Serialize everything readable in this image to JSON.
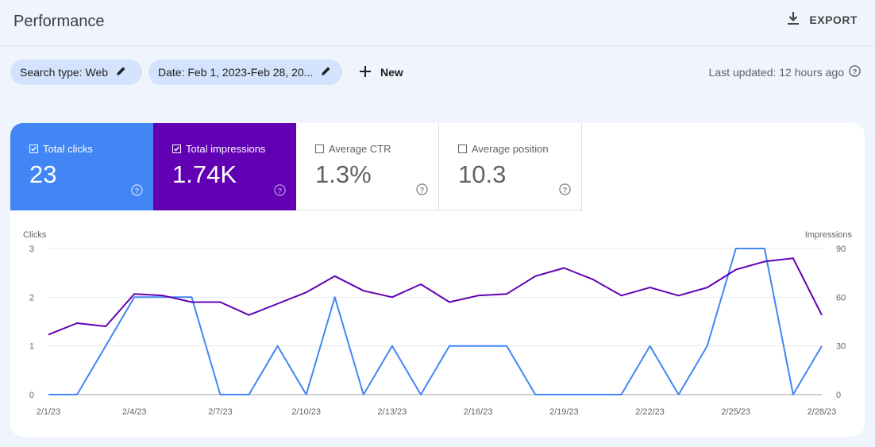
{
  "header": {
    "title": "Performance",
    "export_label": "EXPORT"
  },
  "filters": {
    "search_type": "Search type: Web",
    "date": "Date: Feb 1, 2023-Feb 28, 20...",
    "new_label": "New"
  },
  "last_updated": "Last updated: 12 hours ago",
  "metrics": [
    {
      "label": "Total clicks",
      "value": "23",
      "checked": true,
      "color": "#4285f4"
    },
    {
      "label": "Total impressions",
      "value": "1.74K",
      "checked": true,
      "color": "#6200b3"
    },
    {
      "label": "Average CTR",
      "value": "1.3%",
      "checked": false
    },
    {
      "label": "Average position",
      "value": "10.3",
      "checked": false
    }
  ],
  "chart_data": {
    "type": "line",
    "y_left_label": "Clicks",
    "y_right_label": "Impressions",
    "y_left_ticks": [
      "0",
      "1",
      "2",
      "3"
    ],
    "y_right_ticks": [
      "0",
      "30",
      "60",
      "90"
    ],
    "ylim_left": [
      0,
      3
    ],
    "ylim_right": [
      0,
      90
    ],
    "x_tick_labels": [
      "2/1/23",
      "2/4/23",
      "2/7/23",
      "2/10/23",
      "2/13/23",
      "2/16/23",
      "2/19/23",
      "2/22/23",
      "2/25/23",
      "2/28/23"
    ],
    "x": [
      "2/1/23",
      "2/2/23",
      "2/3/23",
      "2/4/23",
      "2/5/23",
      "2/6/23",
      "2/7/23",
      "2/8/23",
      "2/9/23",
      "2/10/23",
      "2/11/23",
      "2/12/23",
      "2/13/23",
      "2/14/23",
      "2/15/23",
      "2/16/23",
      "2/17/23",
      "2/18/23",
      "2/19/23",
      "2/20/23",
      "2/21/23",
      "2/22/23",
      "2/23/23",
      "2/24/23",
      "2/25/23",
      "2/26/23",
      "2/27/23",
      "2/28/23"
    ],
    "grid": true,
    "series": [
      {
        "name": "Clicks",
        "axis": "left",
        "color": "#4285f4",
        "values": [
          0,
          0,
          1,
          2,
          2,
          2,
          0,
          0,
          1,
          0,
          2,
          0,
          1,
          0,
          1,
          1,
          1,
          0,
          0,
          0,
          0,
          1,
          0,
          1,
          3,
          3,
          0,
          1
        ]
      },
      {
        "name": "Impressions",
        "axis": "right",
        "color": "#6200b3",
        "values": [
          37,
          44,
          42,
          62,
          61,
          57,
          57,
          49,
          56,
          63,
          73,
          64,
          60,
          68,
          57,
          61,
          62,
          73,
          78,
          71,
          61,
          66,
          61,
          66,
          77,
          82,
          84,
          49
        ]
      }
    ]
  }
}
